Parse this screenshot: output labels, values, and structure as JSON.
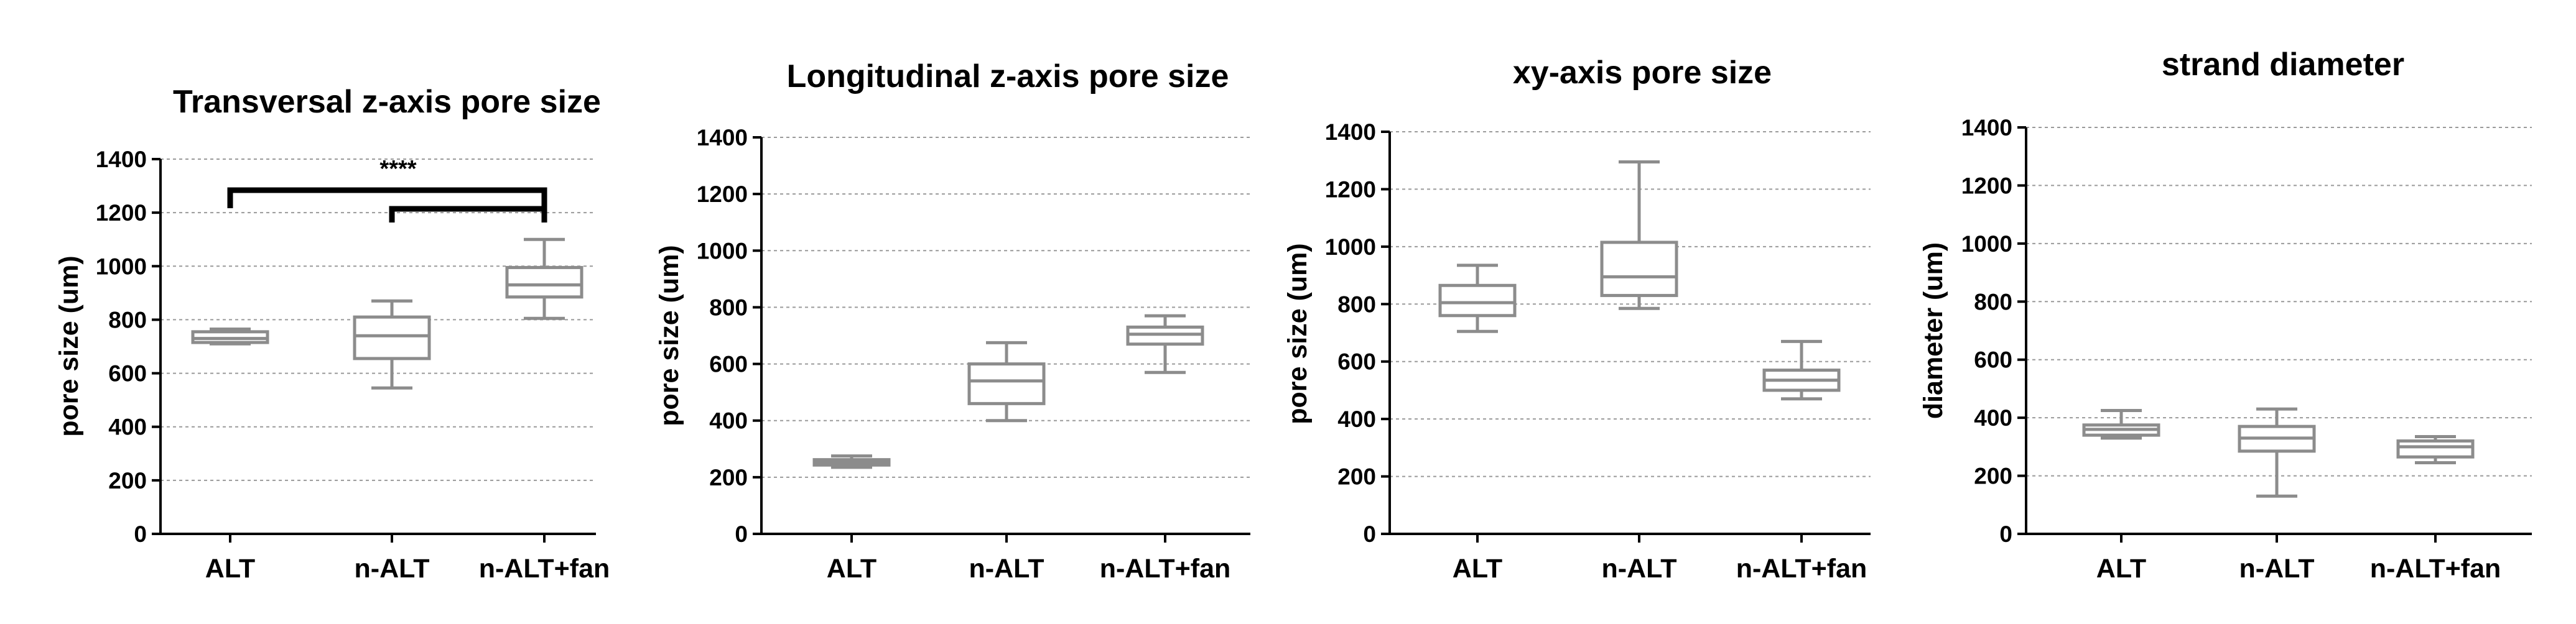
{
  "chart_data": [
    {
      "type": "box",
      "title": "Transversal z-axis pore size",
      "ylabel": "pore size (um)",
      "xlabel": "",
      "ylim": [
        0,
        1400
      ],
      "yticks": [
        "0",
        "200",
        "400",
        "600",
        "800",
        "1000",
        "1200",
        "1400"
      ],
      "grid": true,
      "categories": [
        "ALT",
        "n-ALT",
        "n-ALT+fan"
      ],
      "boxes": [
        {
          "min": 710,
          "q1": 715,
          "median": 730,
          "q3": 755,
          "max": 765
        },
        {
          "min": 545,
          "q1": 655,
          "median": 740,
          "q3": 810,
          "max": 870
        },
        {
          "min": 805,
          "q1": 885,
          "median": 930,
          "q3": 995,
          "max": 1100
        }
      ],
      "significance": {
        "label": "****",
        "pairs": [
          [
            "ALT",
            "n-ALT+fan"
          ],
          [
            "n-ALT",
            "n-ALT+fan"
          ]
        ]
      }
    },
    {
      "type": "box",
      "title": "Longitudinal z-axis pore size",
      "ylabel": "pore size (um)",
      "xlabel": "",
      "ylim": [
        0,
        1400
      ],
      "yticks": [
        "0",
        "200",
        "400",
        "600",
        "800",
        "1000",
        "1200",
        "1400"
      ],
      "grid": true,
      "categories": [
        "ALT",
        "n-ALT",
        "n-ALT+fan"
      ],
      "boxes": [
        {
          "min": 235,
          "q1": 243,
          "median": 253,
          "q3": 262,
          "max": 275
        },
        {
          "min": 400,
          "q1": 460,
          "median": 540,
          "q3": 600,
          "max": 675
        },
        {
          "min": 570,
          "q1": 670,
          "median": 705,
          "q3": 730,
          "max": 770
        }
      ]
    },
    {
      "type": "box",
      "title": "xy-axis pore size",
      "ylabel": "pore size (um)",
      "xlabel": "",
      "ylim": [
        0,
        1400
      ],
      "yticks": [
        "0",
        "200",
        "400",
        "600",
        "800",
        "1000",
        "1200",
        "1400"
      ],
      "grid": true,
      "categories": [
        "ALT",
        "n-ALT",
        "n-ALT+fan"
      ],
      "boxes": [
        {
          "min": 705,
          "q1": 760,
          "median": 805,
          "q3": 865,
          "max": 935
        },
        {
          "min": 785,
          "q1": 830,
          "median": 895,
          "q3": 1015,
          "max": 1295
        },
        {
          "min": 470,
          "q1": 500,
          "median": 535,
          "q3": 570,
          "max": 670
        }
      ]
    },
    {
      "type": "box",
      "title": "strand diameter",
      "ylabel": "diameter (um)",
      "xlabel": "",
      "ylim": [
        0,
        1400
      ],
      "yticks": [
        "0",
        "200",
        "400",
        "600",
        "800",
        "1000",
        "1200",
        "1400"
      ],
      "grid": true,
      "categories": [
        "ALT",
        "n-ALT",
        "n-ALT+fan"
      ],
      "boxes": [
        {
          "min": 330,
          "q1": 340,
          "median": 360,
          "q3": 375,
          "max": 425
        },
        {
          "min": 130,
          "q1": 285,
          "median": 330,
          "q3": 370,
          "max": 430
        },
        {
          "min": 245,
          "q1": 265,
          "median": 300,
          "q3": 320,
          "max": 335
        }
      ]
    }
  ]
}
